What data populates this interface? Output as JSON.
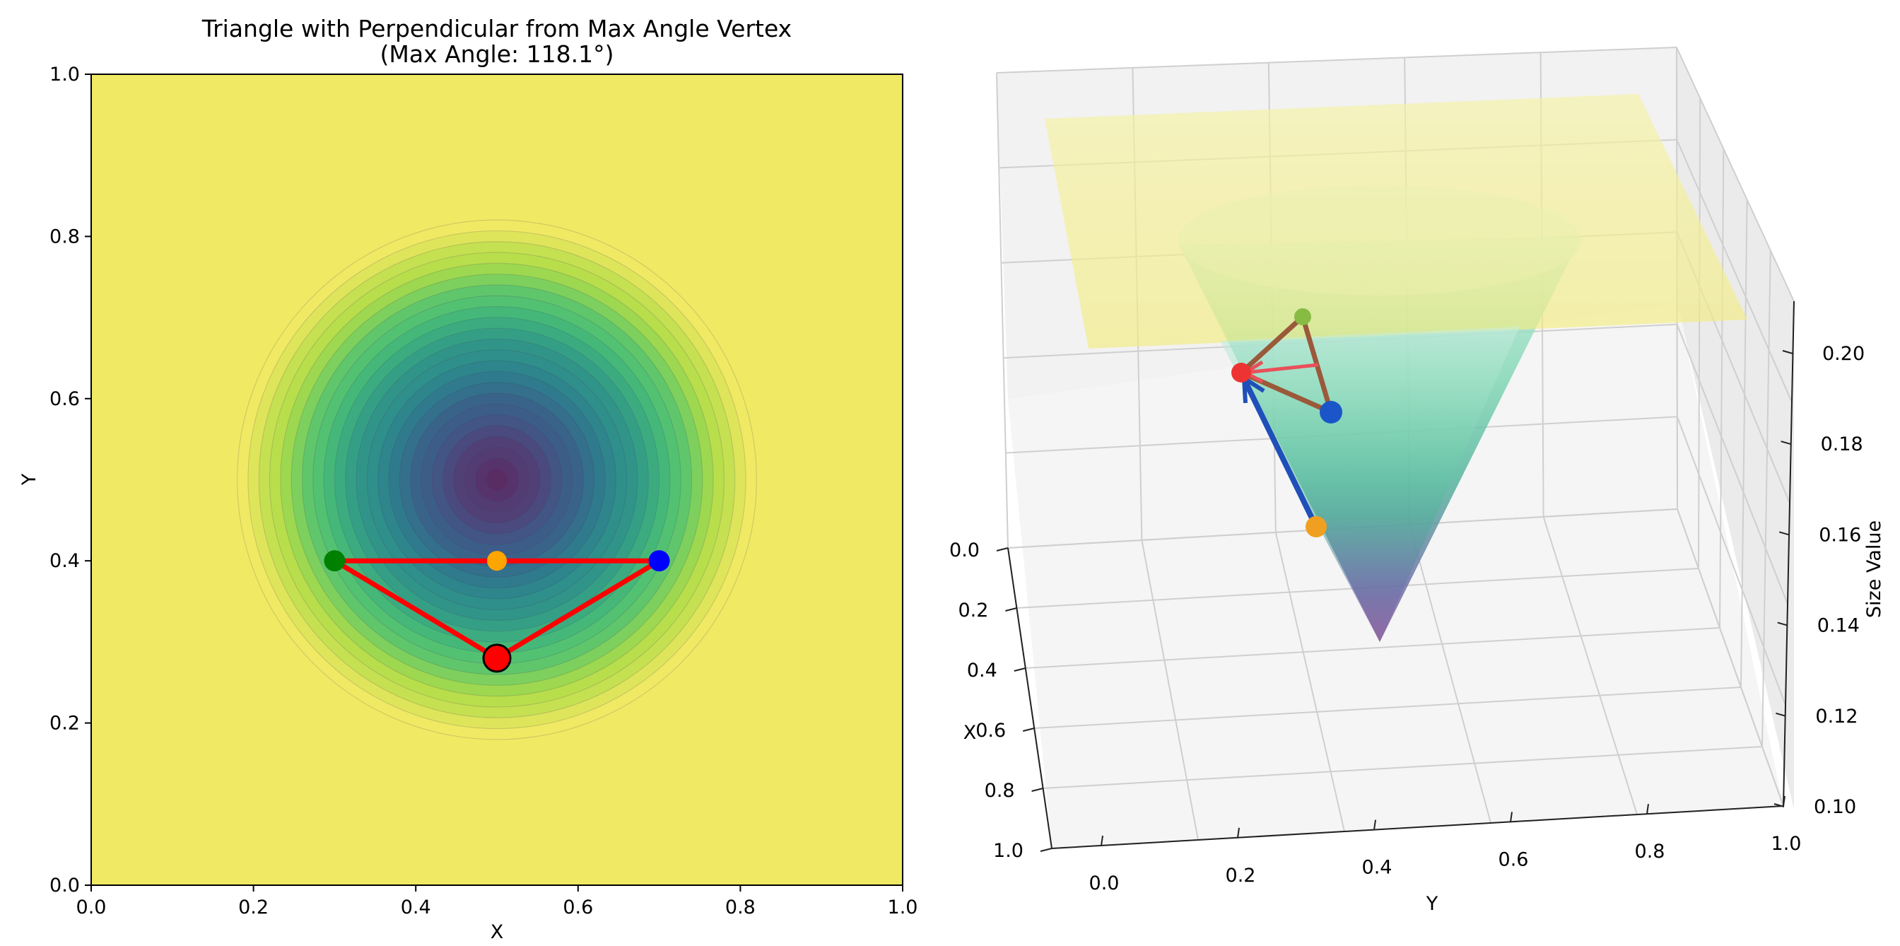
{
  "chart_data": [
    {
      "type": "contour",
      "title_line1": "Triangle with Perpendicular from Max Angle Vertex",
      "title_line2": "(Max Angle: 118.1°)",
      "xlabel": "X",
      "ylabel": "Y",
      "xlim": [
        0.0,
        1.0
      ],
      "ylim": [
        0.0,
        1.0
      ],
      "xticks": [
        "0.0",
        "0.2",
        "0.4",
        "0.6",
        "0.8",
        "1.0"
      ],
      "yticks": [
        "0.0",
        "0.2",
        "0.4",
        "0.6",
        "0.8",
        "1.0"
      ],
      "contour_center": [
        0.5,
        0.5
      ],
      "contour_outer_radius": 0.32,
      "contour_levels": 24,
      "triangle": [
        [
          0.3,
          0.4
        ],
        [
          0.7,
          0.4
        ],
        [
          0.5,
          0.28
        ]
      ],
      "points": [
        {
          "name": "green-vertex",
          "x": 0.3,
          "y": 0.4,
          "color": "#008000"
        },
        {
          "name": "blue-vertex",
          "x": 0.7,
          "y": 0.4,
          "color": "#0000ff"
        },
        {
          "name": "max-angle-vertex",
          "x": 0.5,
          "y": 0.28,
          "color": "#ff0000"
        },
        {
          "name": "perpendicular-foot",
          "x": 0.5,
          "y": 0.4,
          "color": "#ffa500"
        }
      ],
      "colors": {
        "background": "#f0e964",
        "edge": "#ff0000"
      }
    },
    {
      "type": "surface3d",
      "xlabel": "X",
      "ylabel": "Y",
      "zlabel": "Size Value",
      "xticks": [
        "0.0",
        "0.2",
        "0.4",
        "0.6",
        "0.8",
        "1.0"
      ],
      "yticks": [
        "0.0",
        "0.2",
        "0.4",
        "0.6",
        "0.8",
        "1.0"
      ],
      "zticks": [
        "0.10",
        "0.12",
        "0.14",
        "0.16",
        "0.18",
        "0.20"
      ],
      "zlim": [
        0.1,
        0.2
      ],
      "points": [
        {
          "name": "red-vertex-3d",
          "color": "#ee3333"
        },
        {
          "name": "green-vertex-3d",
          "color": "#88bb44"
        },
        {
          "name": "blue-vertex-3d",
          "color": "#1a56c8"
        },
        {
          "name": "orange-foot-3d",
          "color": "#f0a020"
        }
      ]
    }
  ]
}
